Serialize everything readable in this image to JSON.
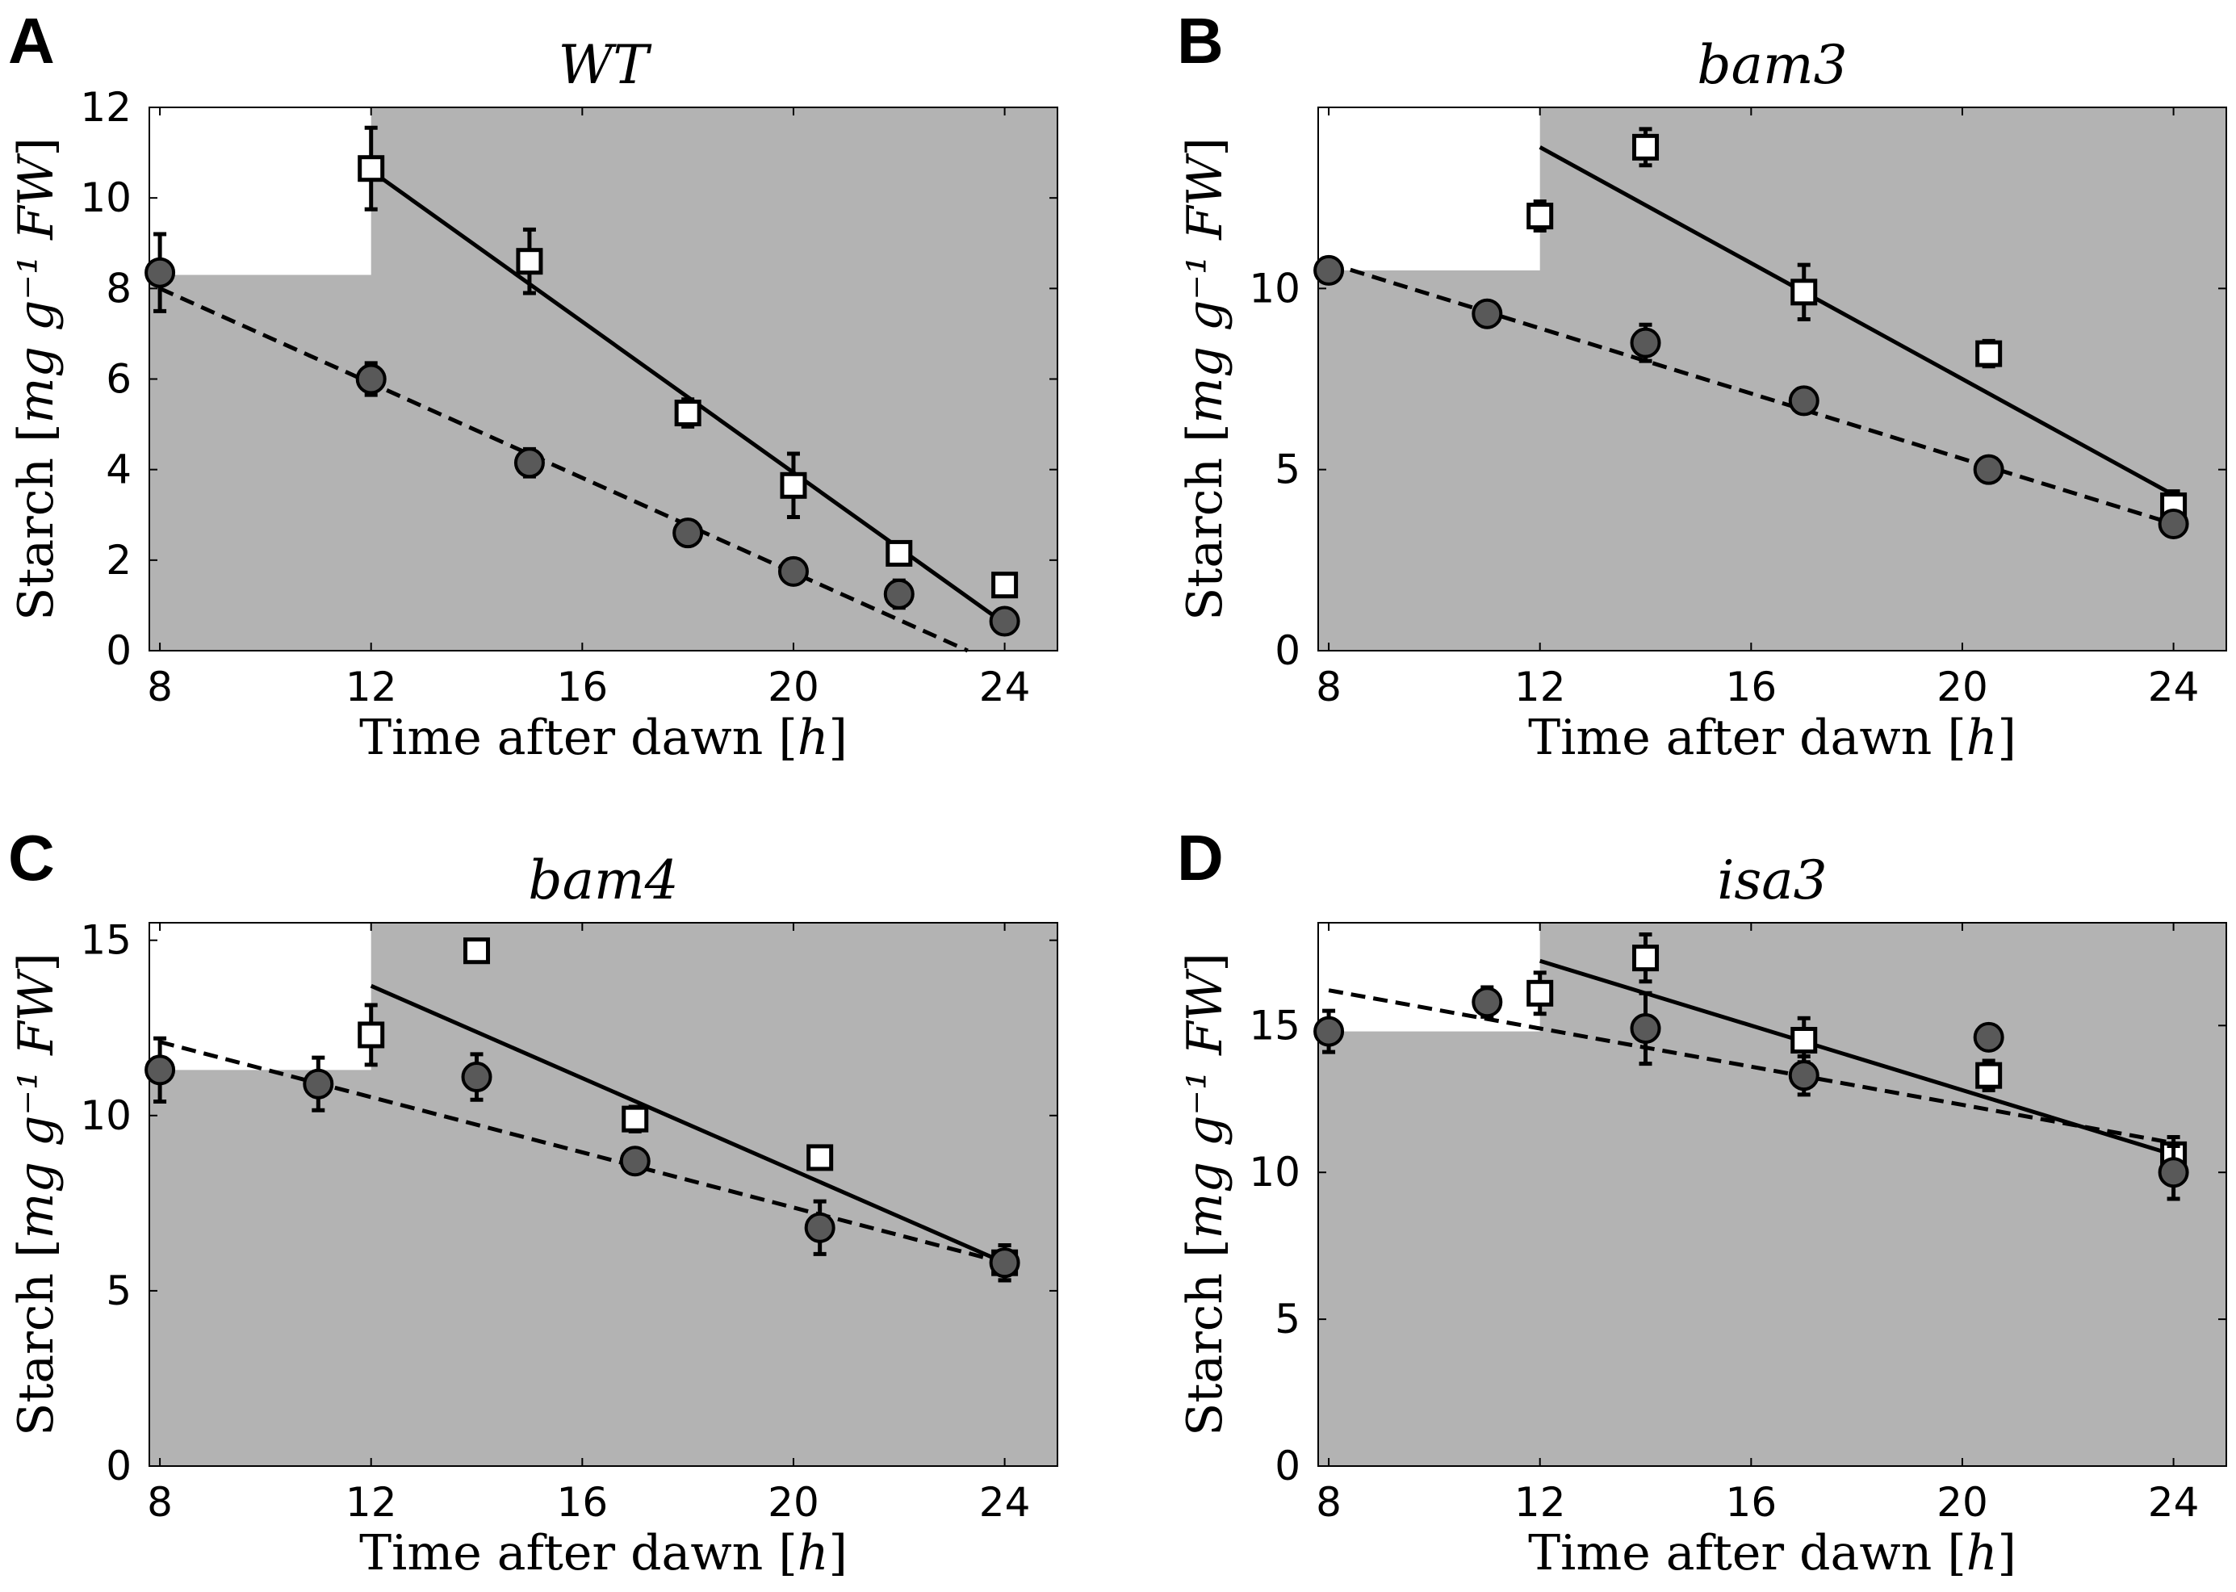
{
  "chart_data": [
    {
      "type": "scatter",
      "panel": "A",
      "title": "WT",
      "xlabel_text": "Time after dawn",
      "xlabel_unit": "h",
      "ylabel_text": "Starch",
      "ylabel_unit": "mg g⁻¹ FW",
      "xlim": [
        7.8,
        25
      ],
      "ylim": [
        0,
        12
      ],
      "xticks": [
        8,
        12,
        16,
        20,
        24
      ],
      "yticks": [
        0,
        2,
        4,
        6,
        8,
        10,
        12
      ],
      "light_period_end": 12,
      "light_region_floor": 8.3,
      "series": [
        {
          "name": "squares",
          "marker": "open-square",
          "x": [
            12,
            15,
            18,
            20,
            22,
            24
          ],
          "y": [
            10.65,
            8.6,
            5.25,
            3.65,
            2.15,
            1.45
          ],
          "err": [
            0.9,
            0.7,
            0.3,
            0.7,
            0.15,
            0.15
          ]
        },
        {
          "name": "circles",
          "marker": "filled-circle",
          "x": [
            8,
            12,
            15,
            18,
            20,
            22,
            24
          ],
          "y": [
            8.35,
            6.0,
            4.15,
            2.6,
            1.75,
            1.25,
            0.65
          ],
          "err": [
            0.85,
            0.35,
            0.3,
            0.15,
            0.15,
            0.3,
            0.1
          ]
        }
      ],
      "fits": [
        {
          "style": "solid",
          "x": [
            12,
            24
          ],
          "y": [
            10.6,
            0.6
          ]
        },
        {
          "style": "dashed",
          "x": [
            8,
            23.3
          ],
          "y": [
            8.0,
            0.0
          ]
        }
      ]
    },
    {
      "type": "scatter",
      "panel": "B",
      "title": "bam3",
      "xlabel_text": "Time after dawn",
      "xlabel_unit": "h",
      "ylabel_text": "Starch",
      "ylabel_unit": "mg g⁻¹ FW",
      "xlim": [
        7.8,
        25
      ],
      "ylim": [
        0,
        15
      ],
      "xticks": [
        8,
        12,
        16,
        20,
        24
      ],
      "yticks": [
        0,
        5,
        10
      ],
      "light_period_end": 12,
      "light_region_floor": 10.5,
      "series": [
        {
          "name": "squares",
          "marker": "open-square",
          "x": [
            12,
            14,
            17,
            20.5,
            24
          ],
          "y": [
            12.0,
            13.9,
            9.9,
            8.2,
            4.0
          ],
          "err": [
            0.4,
            0.5,
            0.75,
            0.35,
            0.4
          ]
        },
        {
          "name": "circles",
          "marker": "filled-circle",
          "x": [
            8,
            11,
            14,
            17,
            20.5,
            24
          ],
          "y": [
            10.5,
            9.3,
            8.5,
            6.9,
            5.0,
            3.5
          ],
          "err": [
            0.1,
            0.3,
            0.5,
            0.2,
            0.15,
            0.3
          ]
        }
      ],
      "fits": [
        {
          "style": "solid",
          "x": [
            12,
            24
          ],
          "y": [
            13.9,
            4.3
          ]
        },
        {
          "style": "dashed",
          "x": [
            8,
            24
          ],
          "y": [
            10.7,
            3.5
          ]
        }
      ]
    },
    {
      "type": "scatter",
      "panel": "C",
      "title": "bam4",
      "xlabel_text": "Time after dawn",
      "xlabel_unit": "h",
      "ylabel_text": "Starch",
      "ylabel_unit": "mg g⁻¹ FW",
      "xlim": [
        7.8,
        25
      ],
      "ylim": [
        0,
        15.5
      ],
      "xticks": [
        8,
        12,
        16,
        20,
        24
      ],
      "yticks": [
        0,
        5,
        10,
        15
      ],
      "light_period_end": 12,
      "light_region_floor": 11.3,
      "series": [
        {
          "name": "squares",
          "marker": "open-square",
          "x": [
            12,
            14,
            17,
            20.5,
            24
          ],
          "y": [
            12.3,
            14.7,
            9.9,
            8.8,
            5.8
          ],
          "err": [
            0.85,
            0.1,
            0.35,
            0.1,
            0.5
          ]
        },
        {
          "name": "circles",
          "marker": "filled-circle",
          "x": [
            8,
            11,
            14,
            17,
            20.5,
            24
          ],
          "y": [
            11.3,
            10.9,
            11.1,
            8.7,
            6.8,
            5.8
          ],
          "err": [
            0.9,
            0.75,
            0.65,
            0.2,
            0.75,
            0.5
          ]
        }
      ],
      "fits": [
        {
          "style": "solid",
          "x": [
            12,
            24
          ],
          "y": [
            13.7,
            5.8
          ]
        },
        {
          "style": "dashed",
          "x": [
            8,
            24
          ],
          "y": [
            12.1,
            5.8
          ]
        }
      ]
    },
    {
      "type": "scatter",
      "panel": "D",
      "title": "isa3",
      "xlabel_text": "Time after dawn",
      "xlabel_unit": "h",
      "ylabel_text": "Starch",
      "ylabel_unit": "mg g⁻¹ FW",
      "xlim": [
        7.8,
        25
      ],
      "ylim": [
        0,
        18.5
      ],
      "xticks": [
        8,
        12,
        16,
        20,
        24
      ],
      "yticks": [
        0,
        5,
        10,
        15
      ],
      "light_period_end": 12,
      "light_region_floor": 14.8,
      "series": [
        {
          "name": "squares",
          "marker": "open-square",
          "x": [
            12,
            14,
            17,
            20.5,
            24
          ],
          "y": [
            16.1,
            17.3,
            14.5,
            13.3,
            10.6
          ],
          "err": [
            0.7,
            0.8,
            0.75,
            0.5,
            0.6
          ]
        },
        {
          "name": "circles",
          "marker": "filled-circle",
          "x": [
            8,
            11,
            14,
            17,
            20.5,
            24
          ],
          "y": [
            14.8,
            15.8,
            14.9,
            13.3,
            14.6,
            10.0
          ],
          "err": [
            0.7,
            0.5,
            1.2,
            0.65,
            0.1,
            0.9
          ]
        }
      ],
      "fits": [
        {
          "style": "solid",
          "x": [
            12,
            24
          ],
          "y": [
            17.2,
            10.6
          ]
        },
        {
          "style": "dashed",
          "x": [
            8,
            24
          ],
          "y": [
            16.2,
            11.0
          ]
        }
      ]
    }
  ]
}
